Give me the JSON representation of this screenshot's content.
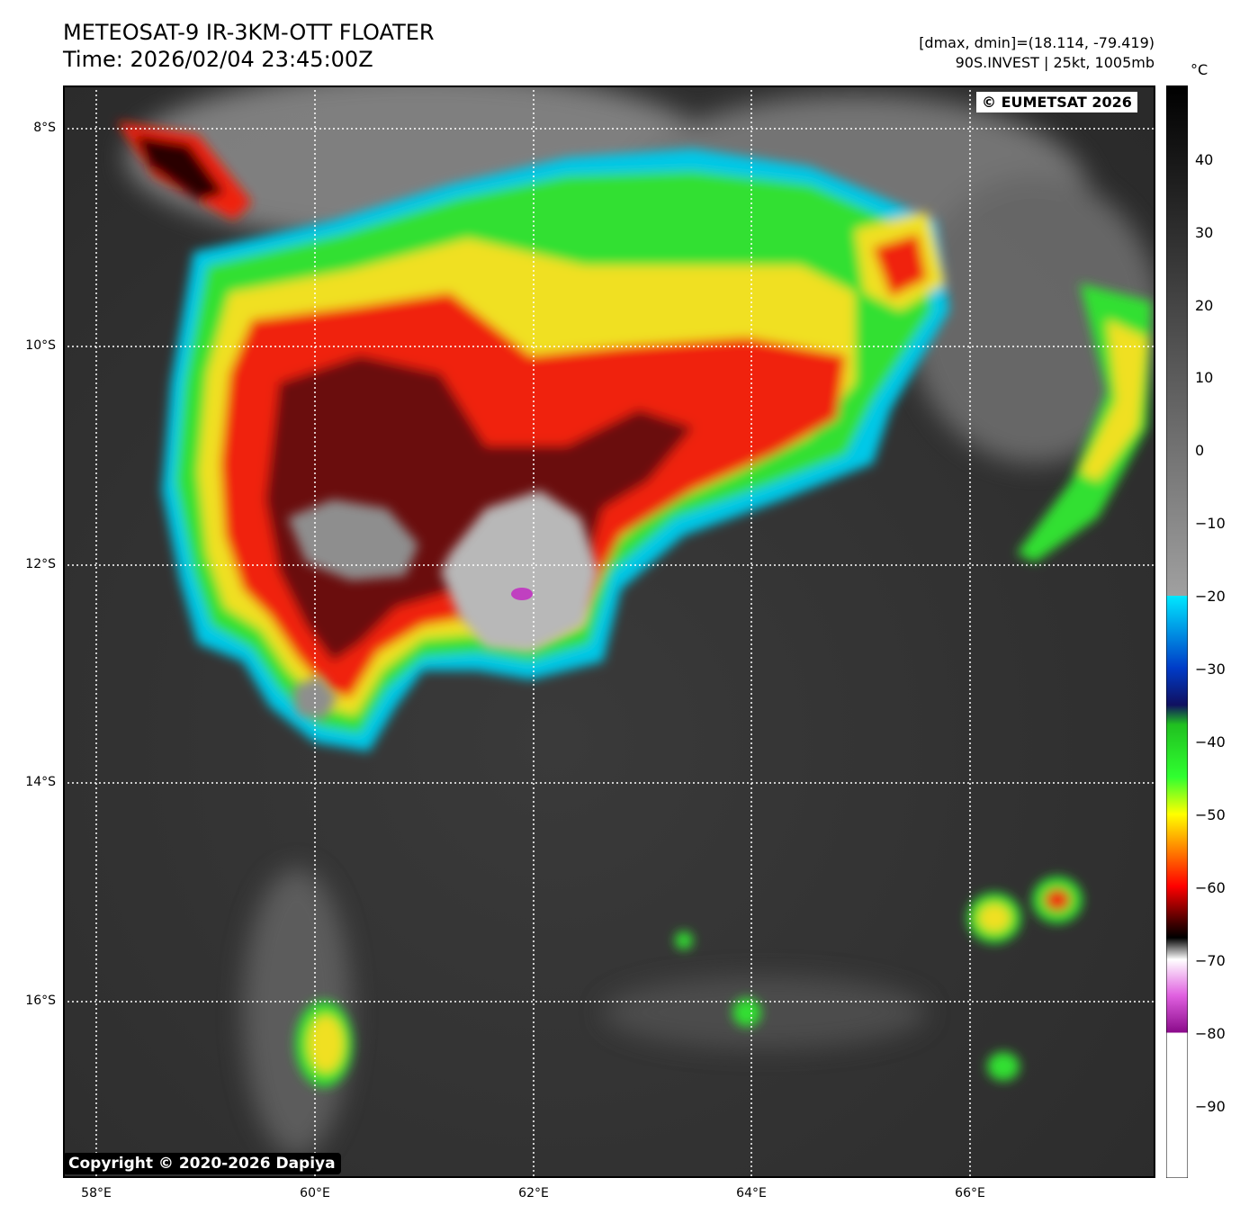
{
  "header": {
    "title": "METEOSAT-9 IR-3KM-OTT FLOATER",
    "time": "Time: 2026/02/04 23:45:00Z",
    "stats": "[dmax, dmin]=(18.114, -79.419)",
    "storm": "90S.INVEST | 25kt, 1005mb"
  },
  "watermarks": {
    "top_right": "© EUMETSAT 2026",
    "bottom_left": "Copyright © 2020-2026 Dapiya"
  },
  "axes": {
    "lat_labels": [
      "8°S",
      "10°S",
      "12°S",
      "14°S",
      "16°S"
    ],
    "lat_values": [
      -8,
      -10,
      -12,
      -14,
      -16
    ],
    "lon_labels": [
      "58°E",
      "60°E",
      "62°E",
      "64°E",
      "66°E"
    ],
    "lon_values": [
      58,
      60,
      62,
      64,
      66
    ],
    "lat_range": [
      -17.6,
      -7.6
    ],
    "lon_range": [
      57.7,
      67.7
    ]
  },
  "colorbar": {
    "unit": "°C",
    "range": [
      -100,
      50
    ],
    "ticks": [
      40,
      30,
      20,
      10,
      0,
      -10,
      -20,
      -30,
      -40,
      -50,
      -60,
      -70,
      -80,
      -90
    ],
    "tick_labels": [
      "40",
      "30",
      "20",
      "10",
      "0",
      "−10",
      "−20",
      "−30",
      "−40",
      "−50",
      "−60",
      "−70",
      "−80",
      "−90"
    ]
  },
  "colors": {
    "frame": "#000000",
    "grid": "#ffffff",
    "cold_core": "#c040c0",
    "coldest_cloud": "#b8b8b8"
  }
}
